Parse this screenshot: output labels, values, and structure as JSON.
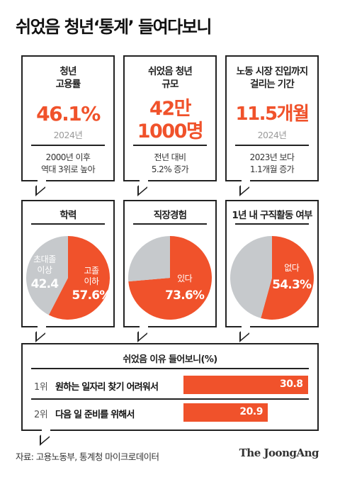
{
  "title": "쉬었음 청년‘통계’ 들여다보니",
  "stats": [
    {
      "label_line1": "청년",
      "label_line2": "고용률",
      "value_line1": "46.1%",
      "value_line2": "",
      "year": "2024년",
      "note_line1": "2000년 이후",
      "note_line2": "역대 3위로 높아"
    },
    {
      "label_line1": "쉬었음 청년",
      "label_line2": "규모",
      "value_line1": "42만",
      "value_line2": "1000명",
      "year": "",
      "note_line1": "전년 대비",
      "note_line2": "5.2% 증가"
    },
    {
      "label_line1": "노동 시장 진입까지",
      "label_line2": "걸리는 기간",
      "value_line1": "11.5개월",
      "value_line2": "",
      "year": "2024년",
      "note_line1": "2023년 보다",
      "note_line2": "1.1개월 증가"
    }
  ],
  "colors": {
    "accent": "#f0522b",
    "gray": "#c6c9cc",
    "border": "#222222"
  },
  "chart_data": [
    {
      "type": "pie",
      "title": "학력",
      "slices": [
        {
          "label_line1": "고졸",
          "label_line2": "이하",
          "value": 57.6,
          "value_text": "57.6%",
          "color": "#f0522b"
        },
        {
          "label_line1": "초대졸",
          "label_line2": "이상",
          "value": 42.4,
          "value_text": "42.4",
          "color": "#c6c9cc"
        }
      ]
    },
    {
      "type": "pie",
      "title": "직장경험",
      "slices": [
        {
          "label_line1": "있다",
          "label_line2": "",
          "value": 73.6,
          "value_text": "73.6%",
          "color": "#f0522b"
        },
        {
          "label_line1": "",
          "label_line2": "",
          "value": 26.4,
          "value_text": "",
          "color": "#c6c9cc"
        }
      ]
    },
    {
      "type": "pie",
      "title": "1년 내 구직활동 여부",
      "slices": [
        {
          "label_line1": "없다",
          "label_line2": "",
          "value": 54.3,
          "value_text": "54.3%",
          "color": "#f0522b"
        },
        {
          "label_line1": "",
          "label_line2": "",
          "value": 45.7,
          "value_text": "",
          "color": "#c6c9cc"
        }
      ]
    },
    {
      "type": "bar",
      "title": "쉬었음 이유 들어보니(%)",
      "categories": [
        "원하는 일자리 찾기 어려워서",
        "다음 일 준비를 위해서"
      ],
      "ranks": [
        "1위",
        "2위"
      ],
      "values": [
        30.8,
        20.9
      ],
      "value_texts": [
        "30.8",
        "20.9"
      ]
    }
  ],
  "source": "자료: 고용노동부, 통계청 마이크로데이터",
  "logo": "The JoongAng"
}
